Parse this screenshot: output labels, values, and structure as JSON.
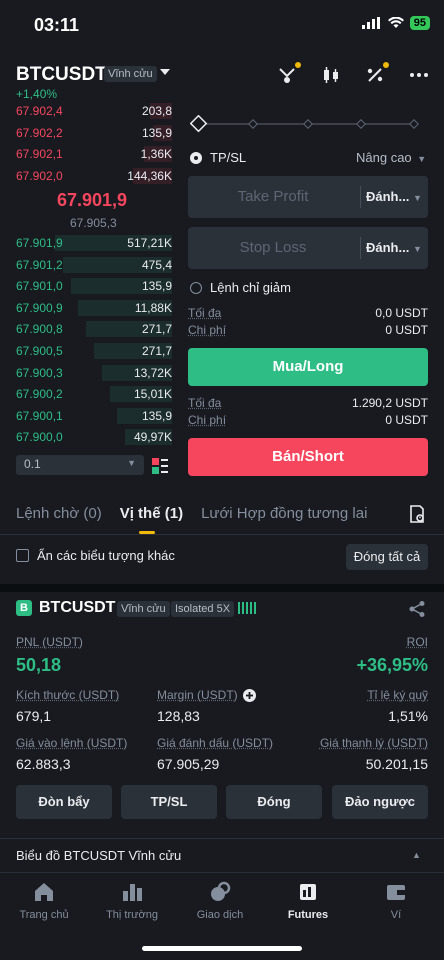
{
  "status": {
    "time": "03:11",
    "battery": "95"
  },
  "header": {
    "symbol": "BTCUSDT",
    "contract_type": "Vĩnh cửu",
    "change": "+1,40%"
  },
  "order_book": {
    "asks": [
      {
        "price": "67.902,4",
        "qty": "203,8",
        "depth": 0.14
      },
      {
        "price": "67.902,2",
        "qty": "135,9",
        "depth": 0.12
      },
      {
        "price": "67.902,1",
        "qty": "1,36K",
        "depth": 0.18
      },
      {
        "price": "67.902,0",
        "qty": "144,36K",
        "depth": 0.25
      }
    ],
    "mid_price": "67.901,9",
    "mark_price": "67.905,3",
    "bids": [
      {
        "price": "67.901,9",
        "qty": "517,21K",
        "depth": 0.75
      },
      {
        "price": "67.901,2",
        "qty": "475,4",
        "depth": 0.7
      },
      {
        "price": "67.901,0",
        "qty": "135,9",
        "depth": 0.65
      },
      {
        "price": "67.900,9",
        "qty": "11,88K",
        "depth": 0.6
      },
      {
        "price": "67.900,8",
        "qty": "271,7",
        "depth": 0.55
      },
      {
        "price": "67.900,5",
        "qty": "271,7",
        "depth": 0.5
      },
      {
        "price": "67.900,3",
        "qty": "13,72K",
        "depth": 0.45
      },
      {
        "price": "67.900,2",
        "qty": "15,01K",
        "depth": 0.4
      },
      {
        "price": "67.900,1",
        "qty": "135,9",
        "depth": 0.35
      },
      {
        "price": "67.900,0",
        "qty": "49,97K",
        "depth": 0.3
      }
    ],
    "tick_size": "0.1"
  },
  "form": {
    "tpsl_label": "TP/SL",
    "advanced_label": "Nâng cao",
    "take_profit_placeholder": "Take Profit",
    "stop_loss_placeholder": "Stop Loss",
    "trigger_select": "Đánh...",
    "reduce_only_label": "Lệnh chỉ giảm",
    "max_label": "Tối đa",
    "cost_label": "Chi phí",
    "buy_max": "0,0 USDT",
    "buy_cost": "0 USDT",
    "buy_label": "Mua/Long",
    "sell_max": "1.290,2 USDT",
    "sell_cost": "0 USDT",
    "sell_label": "Bán/Short"
  },
  "tabs": [
    "Lệnh chờ (0)",
    "Vị thế (1)",
    "Lưới Hợp đồng tương lai"
  ],
  "hide_symbols_label": "Ẩn các biểu tượng khác",
  "close_all_label": "Đóng tất cả",
  "position": {
    "badge": "B",
    "symbol": "BTCUSDT",
    "contract_type": "Vĩnh cửu",
    "margin_mode": "Isolated 5X",
    "pnl_label": "PNL (USDT)",
    "pnl": "50,18",
    "roi_label": "ROI",
    "roi": "+36,95%",
    "size_label": "Kích thước (USDT)",
    "size": "679,1",
    "margin_label": "Margin (USDT)",
    "margin": "128,83",
    "margin_ratio_label": "Tỉ lệ ký quỹ",
    "margin_ratio": "1,51%",
    "entry_label": "Giá vào lệnh (USDT)",
    "entry": "62.883,3",
    "mark_label": "Giá đánh dấu (USDT)",
    "mark": "67.905,29",
    "liq_label": "Giá thanh lý (USDT)",
    "liq": "50.201,15",
    "buttons": [
      "Đòn bẩy",
      "TP/SL",
      "Đóng",
      "Đảo ngược"
    ]
  },
  "chart_link": "Biểu đồ BTCUSDT Vĩnh cửu",
  "nav": [
    {
      "label": "Trang chủ",
      "icon": "home-icon"
    },
    {
      "label": "Thị trường",
      "icon": "markets-icon"
    },
    {
      "label": "Giao dịch",
      "icon": "trade-icon"
    },
    {
      "label": "Futures",
      "icon": "futures-icon"
    },
    {
      "label": "Ví",
      "icon": "wallet-icon"
    }
  ],
  "colors": {
    "green": "#2ebd85",
    "red": "#f6465d",
    "accent": "#f0b90b",
    "bg": "#181a20"
  }
}
